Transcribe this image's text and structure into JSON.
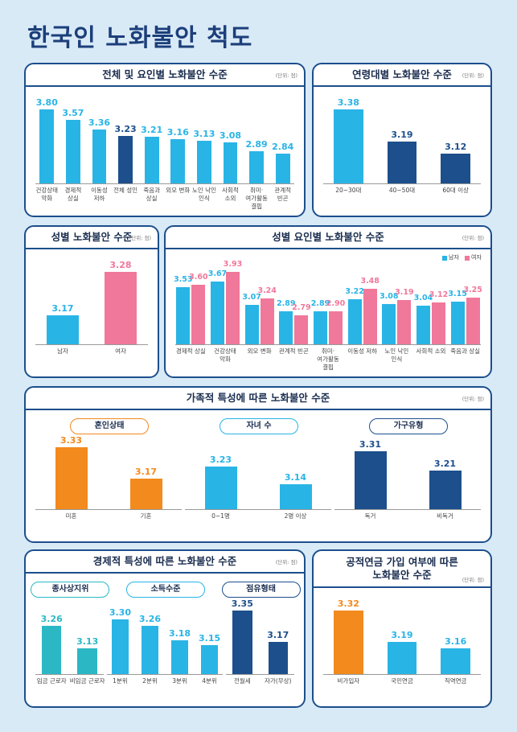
{
  "title": "한국인 노화불안 척도",
  "chart_data": [
    {
      "type": "bar",
      "title": "전체 및 요인별 노화불안 수준",
      "unit": "(단위: 점)",
      "categories": [
        "건강상태 악화",
        "경제적 상실",
        "이동성 저하",
        "전체 성인",
        "죽음과 상실",
        "외모 변화",
        "노인 낙인 인식",
        "사회적 소외",
        "취미·여가활동 결핍",
        "관계적 빈곤"
      ],
      "values": [
        3.8,
        3.57,
        3.36,
        3.23,
        3.21,
        3.16,
        3.13,
        3.08,
        2.89,
        2.84
      ],
      "value_labels": [
        "3.80",
        "3.57",
        "3.36",
        "3.23",
        "3.21",
        "3.16",
        "3.13",
        "3.08",
        "2.89",
        "2.84"
      ],
      "colors": [
        "#29b4e6",
        "#29b4e6",
        "#29b4e6",
        "#1c4f8c",
        "#29b4e6",
        "#29b4e6",
        "#29b4e6",
        "#29b4e6",
        "#29b4e6",
        "#29b4e6"
      ]
    },
    {
      "type": "bar",
      "title": "연령대별 노화불안 수준",
      "unit": "(단위: 점)",
      "categories": [
        "20~30대",
        "40~50대",
        "60대 이상"
      ],
      "values": [
        3.38,
        3.19,
        3.12
      ],
      "colors": [
        "#29b4e6",
        "#1c4f8c",
        "#1c4f8c"
      ]
    },
    {
      "type": "bar",
      "title": "성별 노화불안 수준",
      "unit": "(단위: 점)",
      "categories": [
        "남자",
        "여자"
      ],
      "values": [
        3.17,
        3.28
      ],
      "colors": [
        "#29b4e6",
        "#f0789a"
      ]
    },
    {
      "type": "bar",
      "title": "성별 요인별 노화불안 수준",
      "unit": "(단위: 점)",
      "legend": "top-right",
      "categories": [
        "경제적 상실",
        "건강상태 악화",
        "외모 변화",
        "관계적 빈곤",
        "취미·여가활동 결핍",
        "이동성 저하",
        "노인 낙인 인식",
        "사회적 소외",
        "죽음과 상실"
      ],
      "series": [
        {
          "name": "남자",
          "color": "#29b4e6",
          "values": [
            3.53,
            3.67,
            3.07,
            2.89,
            2.89,
            3.22,
            3.08,
            3.04,
            3.15
          ]
        },
        {
          "name": "여자",
          "color": "#f0789a",
          "values": [
            3.6,
            3.93,
            3.24,
            2.79,
            2.9,
            3.48,
            3.19,
            3.12,
            3.25
          ],
          "value_labels": [
            "3.60",
            "3.93",
            "3.24",
            "2.79",
            "2.90",
            "3.48",
            "3.19",
            "3.12",
            "3.25"
          ]
        }
      ]
    },
    {
      "type": "bar",
      "title": "가족적 특성에 따른 노화불안 수준",
      "unit": "(단위: 점)",
      "groups": [
        {
          "name": "혼인상태",
          "categories": [
            "미혼",
            "기혼"
          ],
          "values": [
            3.33,
            3.17
          ],
          "color": "#f28a1e"
        },
        {
          "name": "자녀 수",
          "categories": [
            "0~1명",
            "2명 이상"
          ],
          "values": [
            3.23,
            3.14
          ],
          "color": "#29b4e6"
        },
        {
          "name": "가구유형",
          "categories": [
            "독거",
            "비독거"
          ],
          "values": [
            3.31,
            3.21
          ],
          "color": "#1c4f8c"
        }
      ]
    },
    {
      "type": "bar",
      "title": "경제적 특성에 따른 노화불안 수준",
      "unit": "(단위: 점)",
      "groups": [
        {
          "name": "종사상지위",
          "categories": [
            "임금 근로자",
            "비임금 근로자"
          ],
          "values": [
            3.26,
            3.13
          ],
          "color": "#2bb8c4"
        },
        {
          "name": "소득수준",
          "categories": [
            "1분위",
            "2분위",
            "3분위",
            "4분위"
          ],
          "values": [
            3.3,
            3.26,
            3.18,
            3.15
          ],
          "value_labels": [
            "3.30",
            "3.26",
            "3.18",
            "3.15"
          ],
          "color": "#29b4e6"
        },
        {
          "name": "점유형태",
          "categories": [
            "전월세",
            "자가(무상)"
          ],
          "values": [
            3.35,
            3.17
          ],
          "color": "#1c4f8c"
        }
      ]
    },
    {
      "type": "bar",
      "title": "공적연금 가입 여부에 따른 노화불안 수준",
      "unit": "(단위: 점)",
      "categories": [
        "비가입자",
        "국민연금",
        "직역연금"
      ],
      "values": [
        3.32,
        3.19,
        3.16
      ],
      "colors": [
        "#f28a1e",
        "#29b4e6",
        "#29b4e6"
      ]
    }
  ]
}
